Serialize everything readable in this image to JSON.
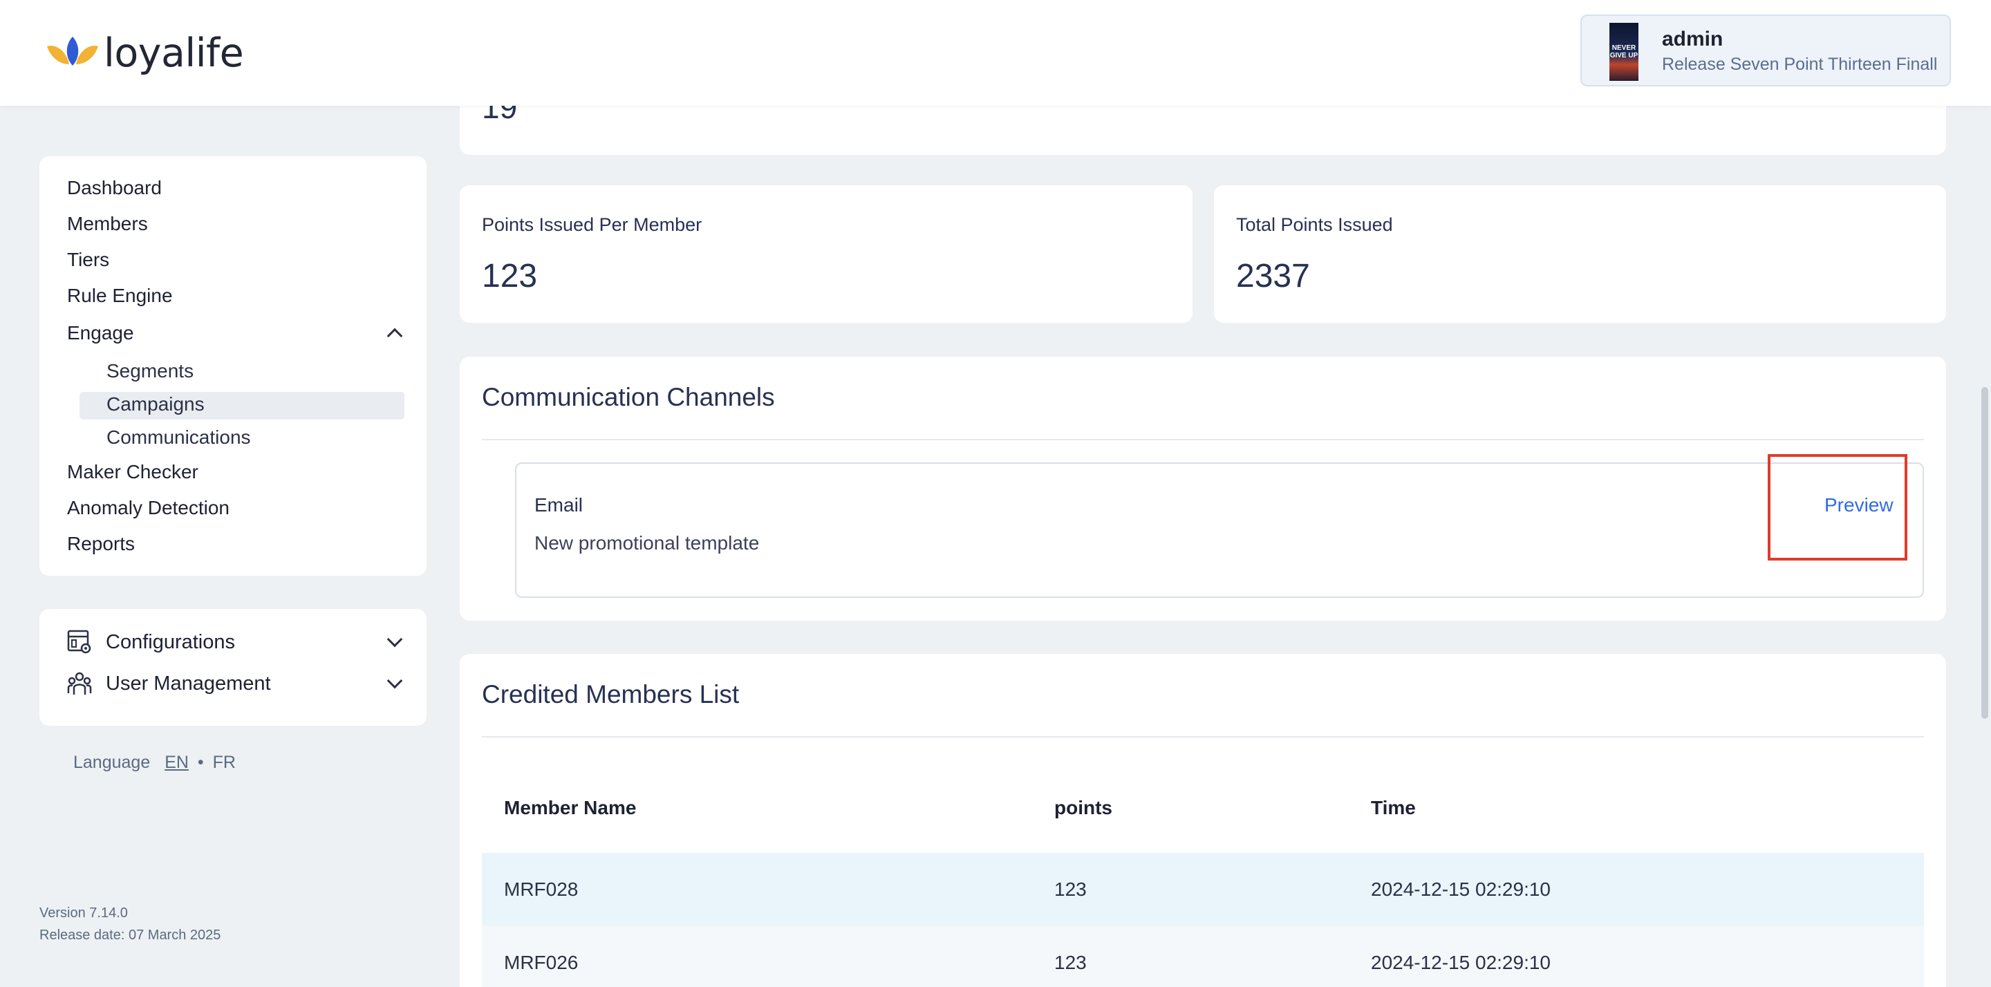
{
  "header": {
    "logo_text": "loyalife",
    "user": {
      "avatar_text": "NEVER GIVE UP",
      "name": "admin",
      "role": "Release Seven Point Thirteen Finall"
    }
  },
  "sidebar": {
    "items": [
      {
        "label": "Dashboard"
      },
      {
        "label": "Members"
      },
      {
        "label": "Tiers"
      },
      {
        "label": "Rule Engine"
      },
      {
        "label": "Engage",
        "expanded": true
      },
      {
        "label": "Maker Checker"
      },
      {
        "label": "Anomaly Detection"
      },
      {
        "label": "Reports"
      }
    ],
    "engage_sub": [
      {
        "label": "Segments"
      },
      {
        "label": "Campaigns",
        "active": true
      },
      {
        "label": "Communications"
      }
    ],
    "settings": [
      {
        "label": "Configurations",
        "icon": "configurations-icon"
      },
      {
        "label": "User Management",
        "icon": "user-management-icon"
      }
    ],
    "language": {
      "label": "Language",
      "en": "EN",
      "separator": "•",
      "fr": "FR"
    },
    "version": "Version 7.14.0",
    "release_date": "Release date: 07 March 2025"
  },
  "main": {
    "top_value": "19",
    "stats": [
      {
        "title": "Points Issued Per Member",
        "value": "123"
      },
      {
        "title": "Total Points Issued",
        "value": "2337"
      }
    ],
    "channels": {
      "title": "Communication Channels",
      "type": "Email",
      "template": "New promotional template",
      "preview_label": "Preview"
    },
    "credited": {
      "title": "Credited Members List",
      "columns": [
        "Member Name",
        "points",
        "Time"
      ],
      "rows": [
        [
          "MRF028",
          "123",
          "2024-12-15 02:29:10"
        ],
        [
          "MRF026",
          "123",
          "2024-12-15 02:29:10"
        ]
      ]
    }
  },
  "colors": {
    "accent": "#2f6ce0",
    "highlight": "#e13b2b",
    "logo_yellow": "#f2b233",
    "logo_blue": "#2e5bd8"
  }
}
